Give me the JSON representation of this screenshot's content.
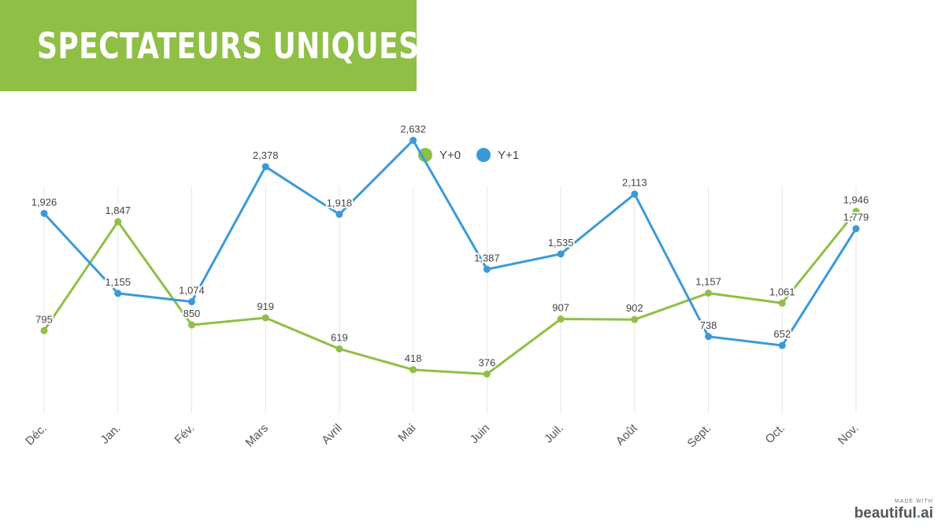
{
  "title": "SPECTATEURS UNIQUES",
  "branding": {
    "made_with": "MADE WITH",
    "name_part1": "beautiful",
    "name_dot": ".",
    "name_part2": "ai"
  },
  "colors": {
    "banner": "#8fbf45",
    "series_y0": "#8fbf45",
    "series_y1": "#3a9ad9"
  },
  "chart_data": {
    "type": "line",
    "categories": [
      "Déc.",
      "Jan.",
      "Fév.",
      "Mars",
      "Avril",
      "Mai",
      "Juin",
      "Juil.",
      "Août",
      "Sept.",
      "Oct.",
      "Nov."
    ],
    "series": [
      {
        "name": "Y+0",
        "color": "#8fbf45",
        "values": [
          795,
          1847,
          850,
          919,
          619,
          418,
          376,
          907,
          902,
          1157,
          1061,
          1946
        ]
      },
      {
        "name": "Y+1",
        "color": "#3a9ad9",
        "values": [
          1926,
          1155,
          1074,
          2378,
          1918,
          2632,
          1387,
          1535,
          2113,
          738,
          652,
          1779
        ]
      }
    ],
    "legend": "top-center",
    "grid": "vertical",
    "ylim": [
      0,
      2850
    ]
  }
}
